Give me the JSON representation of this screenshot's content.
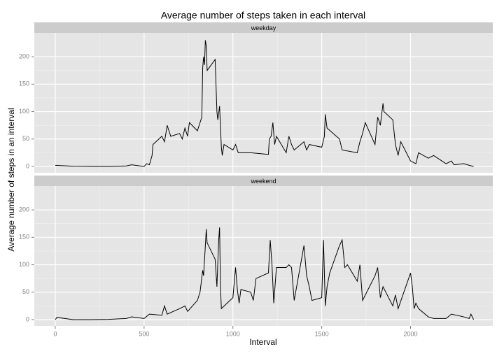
{
  "chart_data": {
    "type": "line",
    "title": "Average number of steps taken in each interval",
    "x_label": "Interval",
    "y_label": "Average number of steps in an interval",
    "xlim": [
      -118,
      2463
    ],
    "xticks": [
      0,
      500,
      1000,
      1500,
      2000
    ],
    "ylim": [
      -11.5,
      243.5
    ],
    "yticks": [
      0,
      50,
      100,
      150,
      200
    ],
    "grid": true,
    "color": "#000000",
    "panels": [
      {
        "name": "weekday",
        "x": [
          0,
          100,
          200,
          300,
          400,
          430,
          500,
          515,
          530,
          545,
          550,
          600,
          615,
          630,
          640,
          650,
          700,
          715,
          730,
          745,
          755,
          800,
          815,
          825,
          830,
          835,
          840,
          845,
          850,
          855,
          900,
          910,
          915,
          925,
          935,
          940,
          950,
          1000,
          1015,
          1030,
          1100,
          1200,
          1205,
          1215,
          1225,
          1235,
          1245,
          1300,
          1315,
          1330,
          1345,
          1400,
          1415,
          1430,
          1500,
          1515,
          1520,
          1530,
          1600,
          1615,
          1700,
          1715,
          1730,
          1745,
          1800,
          1815,
          1830,
          1845,
          1850,
          1900,
          1915,
          1930,
          1945,
          2000,
          2030,
          2045,
          2100,
          2130,
          2200,
          2230,
          2245,
          2300,
          2330,
          2355
        ],
        "values": [
          2,
          0.5,
          0.2,
          0,
          1,
          3,
          0,
          5,
          3,
          20,
          40,
          55,
          45,
          75,
          65,
          55,
          60,
          50,
          70,
          55,
          80,
          65,
          80,
          90,
          180,
          200,
          185,
          230,
          220,
          175,
          195,
          100,
          85,
          110,
          35,
          20,
          40,
          30,
          40,
          25,
          25,
          22,
          50,
          55,
          80,
          40,
          55,
          25,
          55,
          40,
          30,
          45,
          30,
          40,
          35,
          55,
          95,
          70,
          50,
          30,
          25,
          45,
          60,
          80,
          40,
          90,
          75,
          115,
          100,
          85,
          40,
          20,
          45,
          10,
          5,
          25,
          15,
          20,
          5,
          10,
          3,
          5,
          2,
          0
        ]
      },
      {
        "name": "weekend",
        "x": [
          0,
          10,
          100,
          200,
          300,
          400,
          430,
          500,
          530,
          600,
          615,
          630,
          700,
          730,
          745,
          800,
          815,
          830,
          835,
          845,
          850,
          855,
          900,
          910,
          920,
          925,
          930,
          935,
          1000,
          1015,
          1025,
          1035,
          1045,
          1100,
          1115,
          1130,
          1200,
          1210,
          1220,
          1230,
          1245,
          1300,
          1315,
          1330,
          1345,
          1400,
          1415,
          1430,
          1445,
          1500,
          1510,
          1520,
          1530,
          1545,
          1600,
          1615,
          1630,
          1645,
          1700,
          1715,
          1730,
          1800,
          1815,
          1830,
          1845,
          1900,
          1915,
          1930,
          2000,
          2010,
          2020,
          2030,
          2045,
          2100,
          2130,
          2200,
          2230,
          2300,
          2330,
          2340,
          2355
        ],
        "values": [
          0,
          4,
          0,
          0,
          0.5,
          2,
          5,
          2,
          10,
          8,
          25,
          10,
          20,
          25,
          15,
          35,
          50,
          90,
          80,
          135,
          165,
          140,
          110,
          60,
          145,
          168,
          60,
          20,
          40,
          95,
          55,
          30,
          55,
          50,
          35,
          75,
          85,
          145,
          100,
          30,
          95,
          95,
          100,
          95,
          35,
          135,
          80,
          60,
          35,
          40,
          145,
          25,
          60,
          85,
          135,
          145,
          95,
          100,
          70,
          100,
          35,
          80,
          95,
          40,
          60,
          25,
          45,
          20,
          85,
          60,
          20,
          30,
          20,
          5,
          2,
          2,
          10,
          5,
          2,
          10,
          0
        ]
      }
    ]
  }
}
